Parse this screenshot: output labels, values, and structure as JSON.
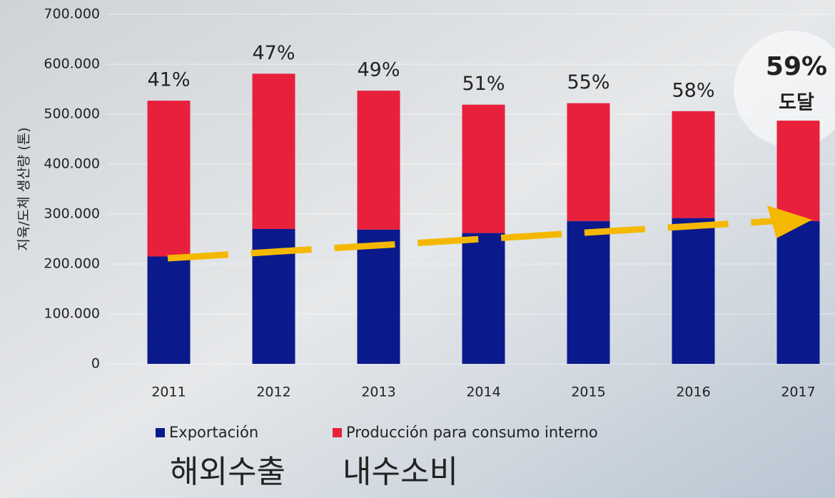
{
  "chart_data": {
    "type": "stacked_bar",
    "y_label": "지육/도체 생산량 (톤)",
    "categories": [
      "2011",
      "2012",
      "2013",
      "2014",
      "2015",
      "2016",
      "2017"
    ],
    "series": [
      {
        "name": "Exportación",
        "color": "#0a1a8c",
        "values": [
          215000,
          270000,
          269000,
          262000,
          286000,
          292000,
          286000
        ]
      },
      {
        "name": "Producción para consumo interno",
        "color": "#e8203c",
        "values": [
          312000,
          311000,
          278000,
          257000,
          236000,
          214000,
          201000
        ]
      }
    ],
    "percent_labels": [
      "41%",
      "47%",
      "49%",
      "51%",
      "55%",
      "58%",
      "59%"
    ],
    "highlight_note": "도달",
    "legend_translations": [
      "해외수출",
      "내수소비"
    ],
    "ylim": [
      0,
      700000
    ],
    "yticks": [
      0,
      {
        "value": 100000,
        "label": "100.000"
      },
      {
        "value": 200000,
        "label": "200.000"
      },
      {
        "value": 300000,
        "label": "300.000"
      },
      {
        "value": 400000,
        "label": "400.000"
      },
      {
        "value": 500000,
        "label": "500.000"
      },
      {
        "value": 600000,
        "label": "600.000"
      },
      {
        "value": 700000,
        "label": "700.000"
      }
    ],
    "grid": true
  }
}
